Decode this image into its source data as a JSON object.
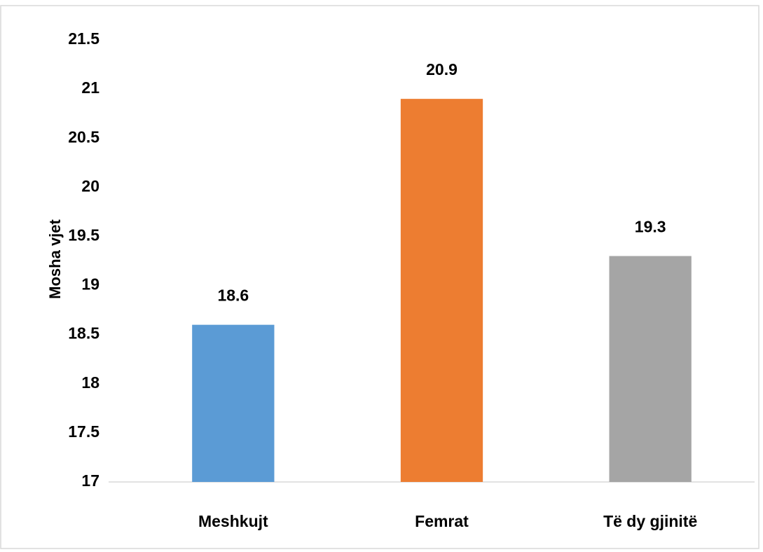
{
  "chart_data": {
    "type": "bar",
    "categories": [
      "Meshkujt",
      "Femrat",
      "Të dy gjinitë"
    ],
    "values": [
      18.6,
      20.9,
      19.3
    ],
    "colors": [
      "#5b9bd5",
      "#ed7d31",
      "#a5a5a5"
    ],
    "y_label": "Mosha vjet",
    "ylim": [
      17,
      21.5
    ],
    "yticks": [
      17,
      17.5,
      18,
      18.5,
      19,
      19.5,
      20,
      20.5,
      21,
      21.5
    ],
    "grid": false,
    "data_labels": true
  }
}
